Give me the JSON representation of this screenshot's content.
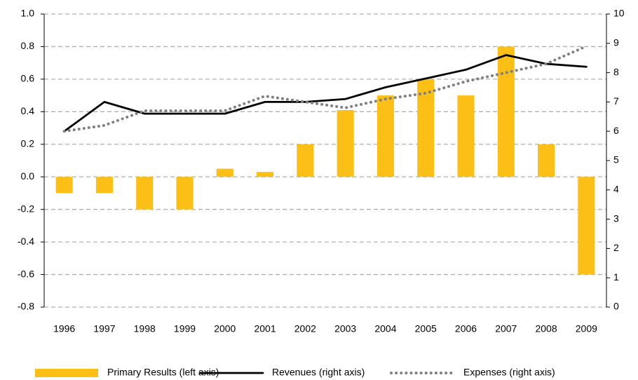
{
  "chart_data": {
    "type": "bar",
    "categories": [
      "1996",
      "1997",
      "1998",
      "1999",
      "2000",
      "2001",
      "2002",
      "2003",
      "2004",
      "2005",
      "2006",
      "2007",
      "2008",
      "2009"
    ],
    "series": [
      {
        "name": "Primary Results (left axis)",
        "type": "bar",
        "color": "#fbbf16",
        "values": [
          -0.1,
          -0.1,
          -0.2,
          -0.2,
          0.05,
          0.03,
          0.2,
          0.41,
          0.5,
          0.6,
          0.5,
          0.8,
          0.2,
          -0.6
        ]
      },
      {
        "name": "Revenues (right axis)",
        "type": "line",
        "axis": "y2",
        "color": "#000000",
        "style": "solid",
        "values": [
          6.0,
          7.0,
          6.6,
          6.6,
          6.6,
          7.0,
          7.0,
          7.1,
          7.5,
          7.8,
          8.1,
          8.6,
          8.3,
          8.2
        ]
      },
      {
        "name": "Expenses (right axis)",
        "type": "line",
        "axis": "y2",
        "color": "#808080",
        "style": "dotted",
        "values": [
          6.0,
          6.2,
          6.7,
          6.7,
          6.7,
          7.2,
          7.0,
          6.8,
          7.1,
          7.3,
          7.7,
          8.0,
          8.3,
          8.9
        ]
      }
    ],
    "ylim": [
      -0.8,
      1.0
    ],
    "yticks": [
      {
        "value": -0.8,
        "label": "-0.8"
      },
      {
        "value": -0.6,
        "label": "-0.6"
      },
      {
        "value": -0.4,
        "label": "-0.4"
      },
      {
        "value": -0.2,
        "label": "-0.2"
      },
      {
        "value": 0,
        "label": "0.0"
      },
      {
        "value": 0.2,
        "label": "0.2"
      },
      {
        "value": 0.4,
        "label": "0.4"
      },
      {
        "value": 0.6,
        "label": "0.6"
      },
      {
        "value": 0.8,
        "label": "0.8"
      },
      {
        "value": 1.0,
        "label": "1.0"
      }
    ],
    "y2lim": [
      0,
      10
    ],
    "y2ticks": [
      0,
      1,
      2,
      3,
      4,
      5,
      6,
      7,
      8,
      9,
      10
    ],
    "grid": true,
    "legend": "bottom"
  }
}
